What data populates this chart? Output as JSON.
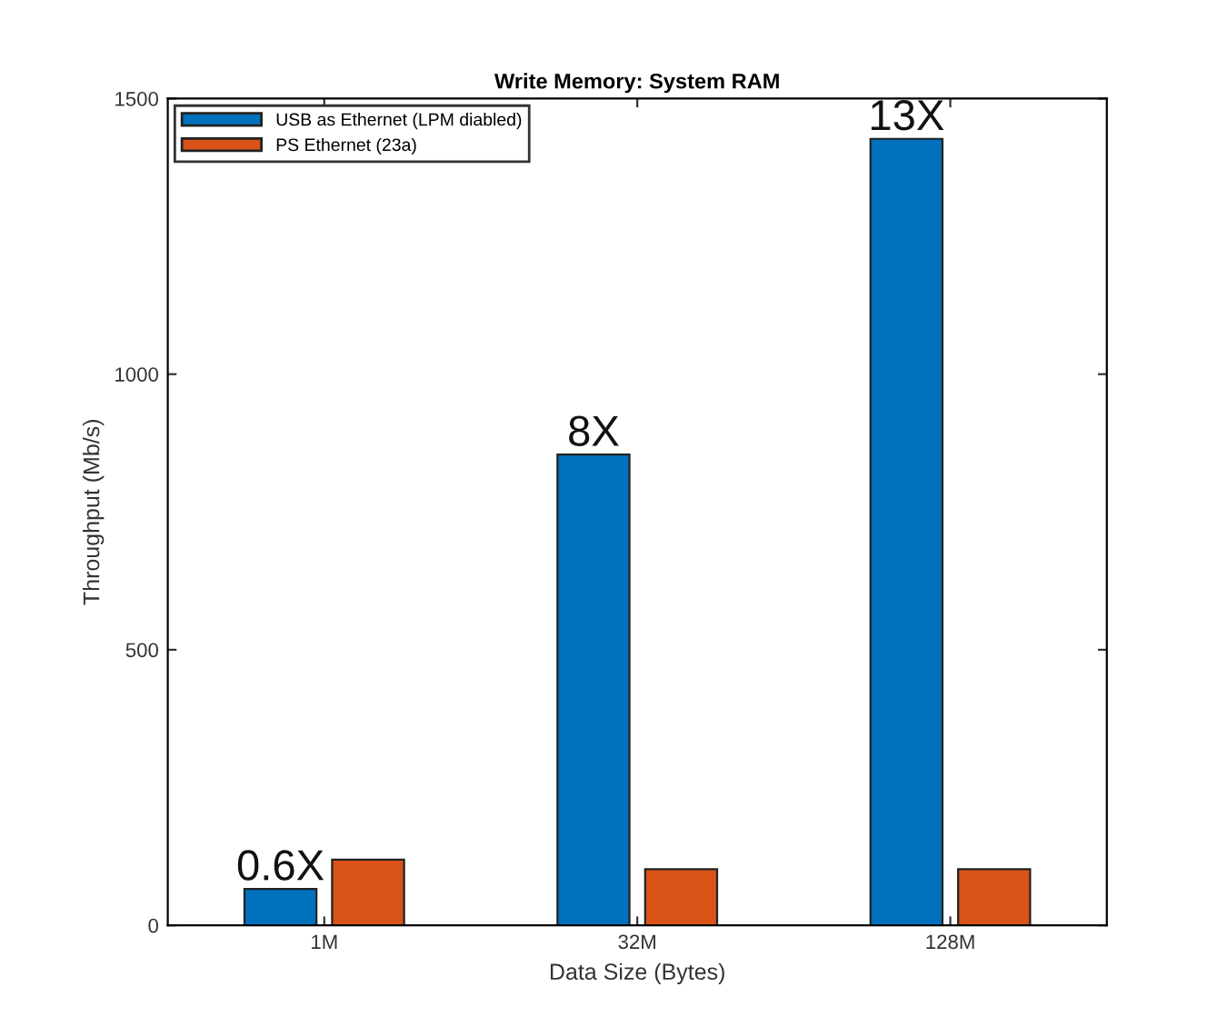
{
  "chart_data": {
    "type": "bar",
    "title": "Write Memory: System RAM",
    "xlabel": "Data Size (Bytes)",
    "ylabel": "Throughput (Mb/s)",
    "categories": [
      "1M",
      "32M",
      "128M"
    ],
    "series": [
      {
        "name": "USB as Ethernet (LPM diabled)",
        "color": "#0072bd",
        "values": [
          66,
          854,
          1427
        ]
      },
      {
        "name": "PS Ethernet (23a)",
        "color": "#d95319",
        "values": [
          119,
          102,
          102
        ]
      }
    ],
    "annotations": [
      {
        "text": "0.6X",
        "x": "1M",
        "y": 66
      },
      {
        "text": "8X",
        "x": "32M",
        "y": 854
      },
      {
        "text": "13X",
        "x": "128M",
        "y": 1427
      }
    ],
    "ylim": [
      0,
      1500
    ],
    "yticks": [
      0,
      500,
      1000,
      1500
    ],
    "grid": false,
    "legend": "top left"
  }
}
